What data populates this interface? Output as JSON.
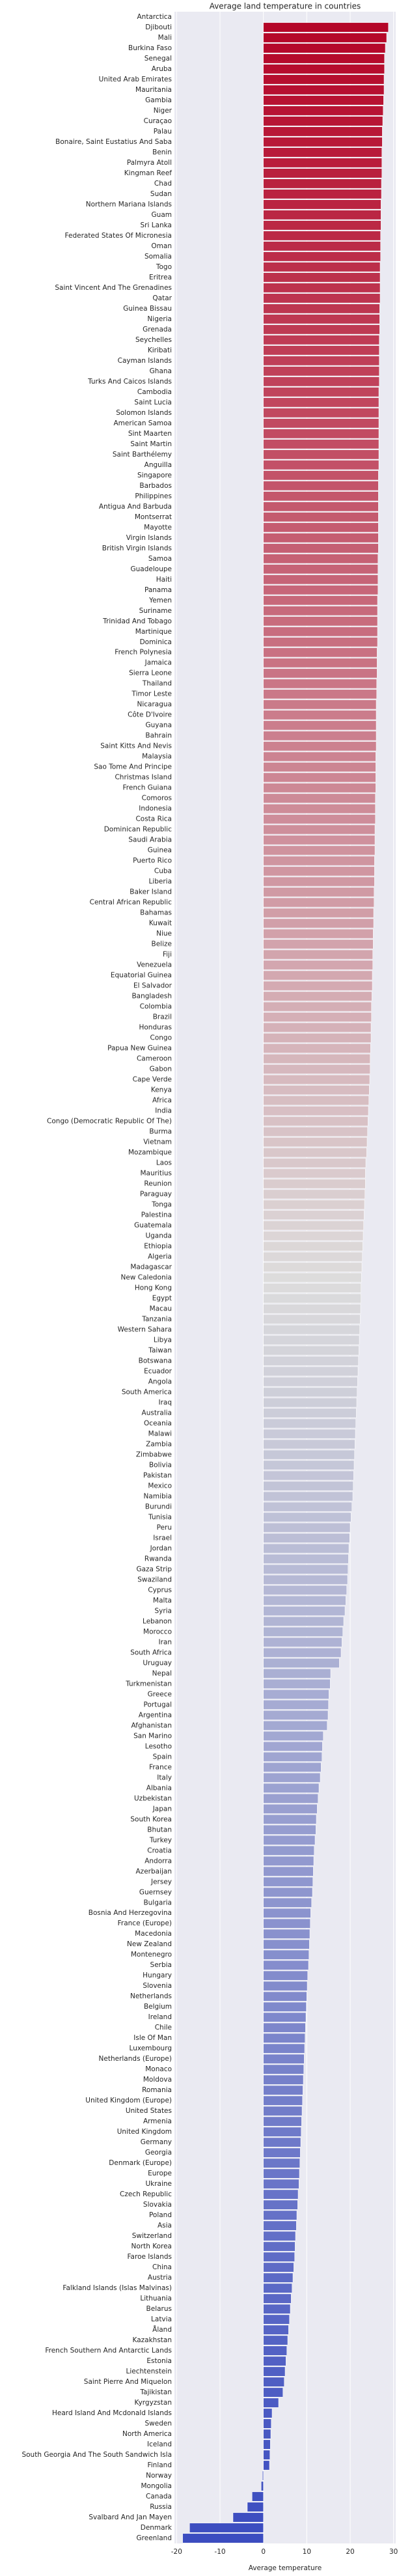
{
  "chart_data": {
    "type": "barh",
    "title": "Average land temperature in countries",
    "xlabel": "Average temperature",
    "xlim": [
      -20.5,
      30.5
    ],
    "xticks": [
      -20,
      -10,
      0,
      10,
      20,
      30
    ],
    "grid": true,
    "colors": [
      "#b40426",
      "#dddcdc",
      "#3b4cc0"
    ],
    "categories": [
      "Antarctica",
      "Djibouti",
      "Mali",
      "Burkina Faso",
      "Senegal",
      "Aruba",
      "United Arab Emirates",
      "Mauritania",
      "Gambia",
      "Niger",
      "Curaçao",
      "Palau",
      "Bonaire, Saint Eustatius And Saba",
      "Benin",
      "Palmyra Atoll",
      "Kingman Reef",
      "Chad",
      "Sudan",
      "Northern Mariana Islands",
      "Guam",
      "Sri Lanka",
      "Federated States Of Micronesia",
      "Oman",
      "Somalia",
      "Togo",
      "Eritrea",
      "Saint Vincent And The Grenadines",
      "Qatar",
      "Guinea Bissau",
      "Nigeria",
      "Grenada",
      "Seychelles",
      "Kiribati",
      "Cayman Islands",
      "Ghana",
      "Turks And Caicos Islands",
      "Cambodia",
      "Saint Lucia",
      "Solomon Islands",
      "American Samoa",
      "Sint Maarten",
      "Saint Martin",
      "Saint Barthélemy",
      "Anguilla",
      "Singapore",
      "Barbados",
      "Philippines",
      "Antigua And Barbuda",
      "Montserrat",
      "Mayotte",
      "Virgin Islands",
      "British Virgin Islands",
      "Samoa",
      "Guadeloupe",
      "Haiti",
      "Panama",
      "Yemen",
      "Suriname",
      "Trinidad And Tobago",
      "Martinique",
      "Dominica",
      "French Polynesia",
      "Jamaica",
      "Sierra Leone",
      "Thailand",
      "Timor Leste",
      "Nicaragua",
      "Côte D'Ivoire",
      "Guyana",
      "Bahrain",
      "Saint Kitts And Nevis",
      "Malaysia",
      "Sao Tome And Principe",
      "Christmas Island",
      "French Guiana",
      "Comoros",
      "Indonesia",
      "Costa Rica",
      "Dominican Republic",
      "Saudi Arabia",
      "Guinea",
      "Puerto Rico",
      "Cuba",
      "Liberia",
      "Baker Island",
      "Central African Republic",
      "Bahamas",
      "Kuwait",
      "Niue",
      "Belize",
      "Fiji",
      "Venezuela",
      "Equatorial Guinea",
      "El Salvador",
      "Bangladesh",
      "Colombia",
      "Brazil",
      "Honduras",
      "Congo",
      "Papua New Guinea",
      "Cameroon",
      "Gabon",
      "Cape Verde",
      "Kenya",
      "Africa",
      "India",
      "Congo (Democratic Republic Of The)",
      "Burma",
      "Vietnam",
      "Mozambique",
      "Laos",
      "Mauritius",
      "Reunion",
      "Paraguay",
      "Tonga",
      "Palestina",
      "Guatemala",
      "Uganda",
      "Ethiopia",
      "Algeria",
      "Madagascar",
      "New Caledonia",
      "Hong Kong",
      "Egypt",
      "Macau",
      "Tanzania",
      "Western Sahara",
      "Libya",
      "Taiwan",
      "Botswana",
      "Ecuador",
      "Angola",
      "South America",
      "Iraq",
      "Australia",
      "Oceania",
      "Malawi",
      "Zambia",
      "Zimbabwe",
      "Bolivia",
      "Pakistan",
      "Mexico",
      "Namibia",
      "Burundi",
      "Tunisia",
      "Peru",
      "Israel",
      "Jordan",
      "Rwanda",
      "Gaza Strip",
      "Swaziland",
      "Cyprus",
      "Malta",
      "Syria",
      "Lebanon",
      "Morocco",
      "Iran",
      "South Africa",
      "Uruguay",
      "Nepal",
      "Turkmenistan",
      "Greece",
      "Portugal",
      "Argentina",
      "Afghanistan",
      "San Marino",
      "Lesotho",
      "Spain",
      "France",
      "Italy",
      "Albania",
      "Uzbekistan",
      "Japan",
      "South Korea",
      "Bhutan",
      "Turkey",
      "Croatia",
      "Andorra",
      "Azerbaijan",
      "Jersey",
      "Guernsey",
      "Bulgaria",
      "Bosnia And Herzegovina",
      "France (Europe)",
      "Macedonia",
      "New Zealand",
      "Montenegro",
      "Serbia",
      "Hungary",
      "Slovenia",
      "Netherlands",
      "Belgium",
      "Ireland",
      "Chile",
      "Isle Of Man",
      "Luxembourg",
      "Netherlands (Europe)",
      "Monaco",
      "Moldova",
      "Romania",
      "United Kingdom (Europe)",
      "United States",
      "Armenia",
      "United Kingdom",
      "Germany",
      "Georgia",
      "Denmark (Europe)",
      "Europe",
      "Ukraine",
      "Czech Republic",
      "Slovakia",
      "Poland",
      "Asia",
      "Switzerland",
      "North Korea",
      "Faroe Islands",
      "China",
      "Austria",
      "Falkland Islands (Islas Malvinas)",
      "Lithuania",
      "Belarus",
      "Latvia",
      "Åland",
      "Kazakhstan",
      "French Southern And Antarctic Lands",
      "Estonia",
      "Liechtenstein",
      "Saint Pierre And Miquelon",
      "Tajikistan",
      "Kyrgyzstan",
      "Heard Island And Mcdonald Islands",
      "Sweden",
      "North America",
      "Iceland",
      "South Georgia And The South Sandwich Isla",
      "Finland",
      "Norway",
      "Mongolia",
      "Canada",
      "Russia",
      "Svalbard And Jan Mayen",
      "Denmark",
      "Greenland"
    ],
    "values": [
      null,
      28.8,
      28.4,
      28.1,
      27.9,
      27.9,
      27.8,
      27.8,
      27.7,
      27.6,
      27.5,
      27.4,
      27.4,
      27.3,
      27.3,
      27.3,
      27.2,
      27.2,
      27.1,
      27.1,
      27.1,
      27.0,
      27.0,
      27.0,
      26.9,
      26.9,
      26.9,
      26.9,
      26.8,
      26.8,
      26.8,
      26.7,
      26.7,
      26.7,
      26.7,
      26.7,
      26.6,
      26.6,
      26.6,
      26.6,
      26.6,
      26.6,
      26.6,
      26.6,
      26.5,
      26.5,
      26.5,
      26.5,
      26.5,
      26.5,
      26.5,
      26.5,
      26.4,
      26.4,
      26.4,
      26.4,
      26.3,
      26.3,
      26.3,
      26.3,
      26.3,
      26.2,
      26.2,
      26.2,
      26.1,
      26.1,
      26.0,
      26.0,
      26.0,
      26.0,
      26.0,
      25.9,
      25.9,
      25.9,
      25.9,
      25.8,
      25.8,
      25.8,
      25.7,
      25.7,
      25.7,
      25.6,
      25.6,
      25.6,
      25.5,
      25.5,
      25.4,
      25.4,
      25.3,
      25.3,
      25.2,
      25.2,
      25.1,
      25.1,
      25.0,
      24.9,
      24.9,
      24.8,
      24.8,
      24.7,
      24.6,
      24.6,
      24.5,
      24.4,
      24.3,
      24.2,
      24.1,
      24.0,
      23.9,
      23.8,
      23.6,
      23.5,
      23.5,
      23.4,
      23.3,
      23.2,
      23.1,
      23.0,
      22.9,
      22.8,
      22.7,
      22.6,
      22.5,
      22.5,
      22.4,
      22.3,
      22.2,
      22.1,
      22.0,
      21.9,
      21.8,
      21.7,
      21.6,
      21.5,
      21.4,
      21.3,
      21.2,
      21.1,
      21.0,
      20.9,
      20.8,
      20.7,
      20.6,
      20.4,
      20.2,
      20.0,
      19.9,
      19.7,
      19.6,
      19.5,
      19.4,
      19.2,
      19.0,
      18.8,
      18.5,
      18.3,
      18.1,
      17.9,
      17.5,
      15.5,
      15.4,
      15.1,
      15.0,
      14.9,
      14.7,
      13.8,
      13.6,
      13.5,
      13.3,
      13.1,
      12.8,
      12.6,
      12.4,
      12.2,
      12.1,
      11.9,
      11.7,
      11.6,
      11.5,
      11.4,
      11.3,
      11.1,
      10.9,
      10.8,
      10.7,
      10.6,
      10.5,
      10.4,
      10.2,
      10.1,
      10.0,
      9.9,
      9.8,
      9.7,
      9.6,
      9.5,
      9.4,
      9.3,
      9.2,
      9.1,
      9.0,
      8.9,
      8.8,
      8.7,
      8.6,
      8.5,
      8.4,
      8.3,
      8.2,
      8.0,
      7.9,
      7.7,
      7.6,
      7.4,
      7.3,
      7.2,
      7.0,
      6.8,
      6.6,
      6.4,
      6.2,
      6.0,
      5.8,
      5.6,
      5.4,
      5.2,
      5.0,
      4.8,
      4.5,
      3.5,
      2.0,
      1.8,
      1.7,
      1.6,
      1.5,
      1.4,
      -0.2,
      -0.5,
      -2.6,
      -3.7,
      -7.0,
      -17.0,
      -18.6
    ]
  }
}
